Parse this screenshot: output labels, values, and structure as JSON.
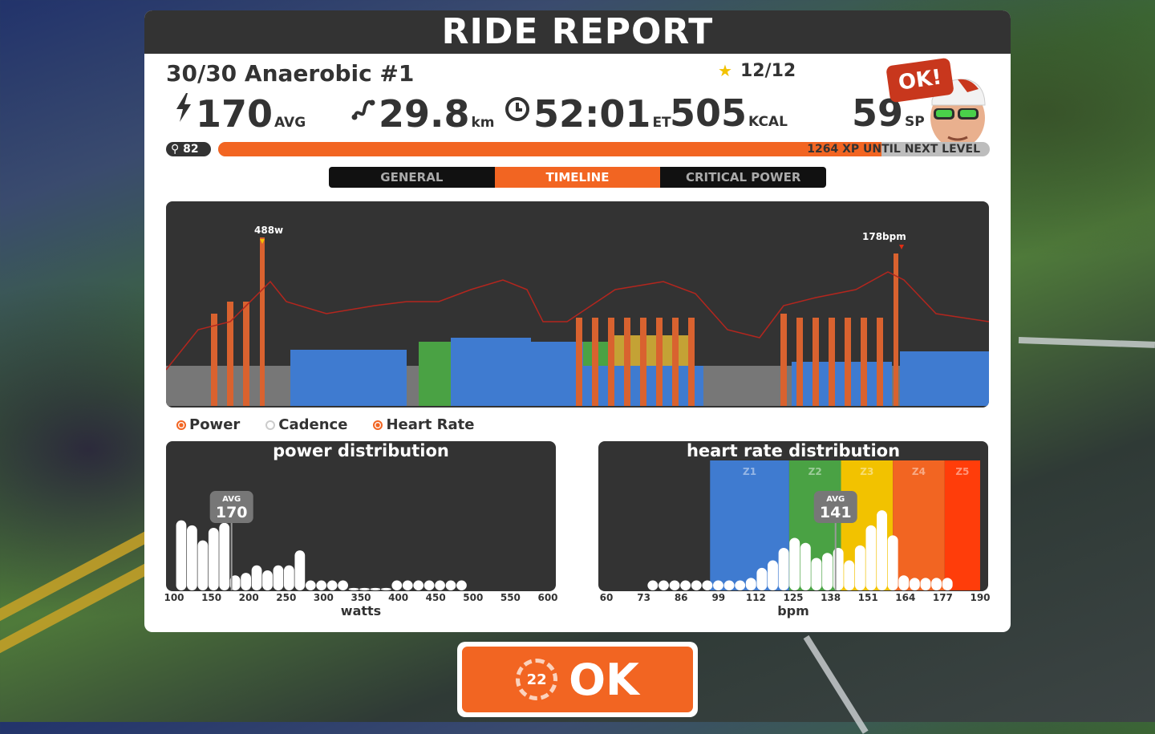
{
  "window": {
    "title": "RIDE REPORT"
  },
  "workout": {
    "name": "30/30 Anaerobic #1",
    "stars": "12/12"
  },
  "stats": {
    "power": {
      "value": "170",
      "unit": "AVG",
      "icon": "bolt-icon"
    },
    "distance": {
      "value": "29.8",
      "unit": "km",
      "icon": "route-icon"
    },
    "time": {
      "value": "52:01",
      "unit": "ET",
      "icon": "clock-icon"
    },
    "energy": {
      "value": "505",
      "unit": "KCAL"
    },
    "sport_points": {
      "value": "59",
      "unit": "SP"
    }
  },
  "avatar": {
    "bubble": "OK!"
  },
  "level": {
    "value": "82",
    "xp_text": "1264 XP UNTIL NEXT LEVEL",
    "progress": 0.86
  },
  "tabs": [
    {
      "label": "GENERAL",
      "active": false
    },
    {
      "label": "TIMELINE",
      "active": true
    },
    {
      "label": "CRITICAL POWER",
      "active": false
    }
  ],
  "timeline": {
    "peak_power_label": "488w",
    "peak_hr_label": "178bpm",
    "legend": [
      {
        "label": "Power",
        "on": true
      },
      {
        "label": "Cadence",
        "on": false
      },
      {
        "label": "Heart Rate",
        "on": true
      }
    ]
  },
  "colors": {
    "accent": "#f26522",
    "z_gray": "#777777",
    "z_blue": "#3f7bd0",
    "z_green": "#4aa244",
    "z_yellow": "#c4a235",
    "z_orange": "#d9622f",
    "z_red": "#e02d14"
  },
  "power_distribution": {
    "title": "power distribution",
    "xlabel": "watts",
    "avg_label": "AVG",
    "avg_value": "170",
    "ticks": [
      "100",
      "150",
      "200",
      "250",
      "300",
      "350",
      "400",
      "450",
      "500",
      "550",
      "600"
    ],
    "x_range": [
      90,
      610
    ],
    "bins": [
      {
        "x": 100,
        "v": 0.56
      },
      {
        "x": 115,
        "v": 0.52
      },
      {
        "x": 130,
        "v": 0.4
      },
      {
        "x": 145,
        "v": 0.5
      },
      {
        "x": 160,
        "v": 0.54
      },
      {
        "x": 175,
        "v": 0.12
      },
      {
        "x": 190,
        "v": 0.14
      },
      {
        "x": 205,
        "v": 0.2
      },
      {
        "x": 220,
        "v": 0.16
      },
      {
        "x": 235,
        "v": 0.2
      },
      {
        "x": 250,
        "v": 0.2
      },
      {
        "x": 265,
        "v": 0.32
      },
      {
        "x": 280,
        "v": 0.08
      },
      {
        "x": 295,
        "v": 0.08
      },
      {
        "x": 310,
        "v": 0.08
      },
      {
        "x": 325,
        "v": 0.08
      },
      {
        "x": 340,
        "v": 0.02
      },
      {
        "x": 355,
        "v": 0.02
      },
      {
        "x": 370,
        "v": 0.02
      },
      {
        "x": 385,
        "v": 0.02
      },
      {
        "x": 400,
        "v": 0.08
      },
      {
        "x": 415,
        "v": 0.08
      },
      {
        "x": 430,
        "v": 0.08
      },
      {
        "x": 445,
        "v": 0.08
      },
      {
        "x": 460,
        "v": 0.08
      },
      {
        "x": 475,
        "v": 0.08
      },
      {
        "x": 490,
        "v": 0.08
      }
    ]
  },
  "hr_distribution": {
    "title": "heart rate distribution",
    "xlabel": "bpm",
    "avg_label": "AVG",
    "avg_value": "141",
    "ticks": [
      "60",
      "73",
      "86",
      "99",
      "112",
      "125",
      "138",
      "151",
      "164",
      "177",
      "190"
    ],
    "x_range": [
      57,
      194
    ],
    "zones": [
      {
        "label": "Z1",
        "from": 95,
        "to": 124,
        "color": "#3f7bd0"
      },
      {
        "label": "Z2",
        "from": 124,
        "to": 143,
        "color": "#4aa244"
      },
      {
        "label": "Z3",
        "from": 143,
        "to": 162,
        "color": "#f2c200"
      },
      {
        "label": "Z4",
        "from": 162,
        "to": 181,
        "color": "#f26522"
      },
      {
        "label": "Z5",
        "from": 181,
        "to": 194,
        "color": "#ff3d0a"
      }
    ],
    "bins": [
      {
        "x": 74,
        "v": 0.08
      },
      {
        "x": 78,
        "v": 0.08
      },
      {
        "x": 82,
        "v": 0.08
      },
      {
        "x": 86,
        "v": 0.08
      },
      {
        "x": 90,
        "v": 0.08
      },
      {
        "x": 94,
        "v": 0.08
      },
      {
        "x": 98,
        "v": 0.08
      },
      {
        "x": 102,
        "v": 0.08
      },
      {
        "x": 106,
        "v": 0.08
      },
      {
        "x": 110,
        "v": 0.1
      },
      {
        "x": 114,
        "v": 0.18
      },
      {
        "x": 118,
        "v": 0.24
      },
      {
        "x": 122,
        "v": 0.34
      },
      {
        "x": 126,
        "v": 0.42
      },
      {
        "x": 130,
        "v": 0.38
      },
      {
        "x": 134,
        "v": 0.26
      },
      {
        "x": 138,
        "v": 0.3
      },
      {
        "x": 142,
        "v": 0.34
      },
      {
        "x": 146,
        "v": 0.24
      },
      {
        "x": 150,
        "v": 0.36
      },
      {
        "x": 154,
        "v": 0.52
      },
      {
        "x": 158,
        "v": 0.64
      },
      {
        "x": 162,
        "v": 0.44
      },
      {
        "x": 166,
        "v": 0.12
      },
      {
        "x": 170,
        "v": 0.1
      },
      {
        "x": 174,
        "v": 0.1
      },
      {
        "x": 178,
        "v": 0.1
      },
      {
        "x": 182,
        "v": 0.1
      }
    ]
  },
  "ok_button": {
    "label": "OK",
    "badge": "22"
  }
}
